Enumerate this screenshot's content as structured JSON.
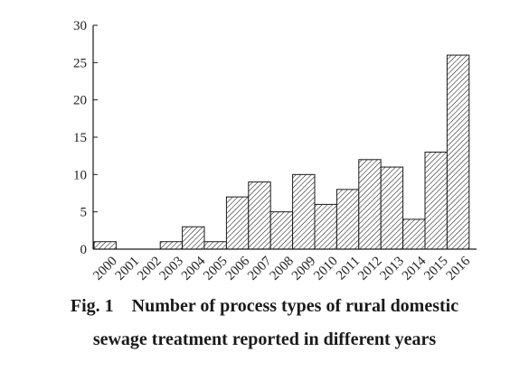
{
  "chart_data": {
    "type": "bar",
    "categories": [
      "2000",
      "2001",
      "2002",
      "2003",
      "2004",
      "2005",
      "2006",
      "2007",
      "2008",
      "2009",
      "2010",
      "2011",
      "2012",
      "2013",
      "2014",
      "2015",
      "2016"
    ],
    "values": [
      1,
      0,
      0,
      1,
      3,
      1,
      7,
      9,
      5,
      10,
      6,
      8,
      12,
      11,
      4,
      13,
      26
    ],
    "ylim": [
      0,
      30
    ],
    "yticks": [
      0,
      5,
      10,
      15,
      20,
      25,
      30
    ],
    "grid": false,
    "bar_fill": "diagonal-hatch",
    "xlabel": "",
    "ylabel": ""
  },
  "caption": {
    "line1": "Fig. 1    Number of process types of rural domestic",
    "line2": "sewage treatment reported in different years"
  },
  "colors": {
    "ink": "#1a1a1a",
    "background": "#ffffff"
  }
}
